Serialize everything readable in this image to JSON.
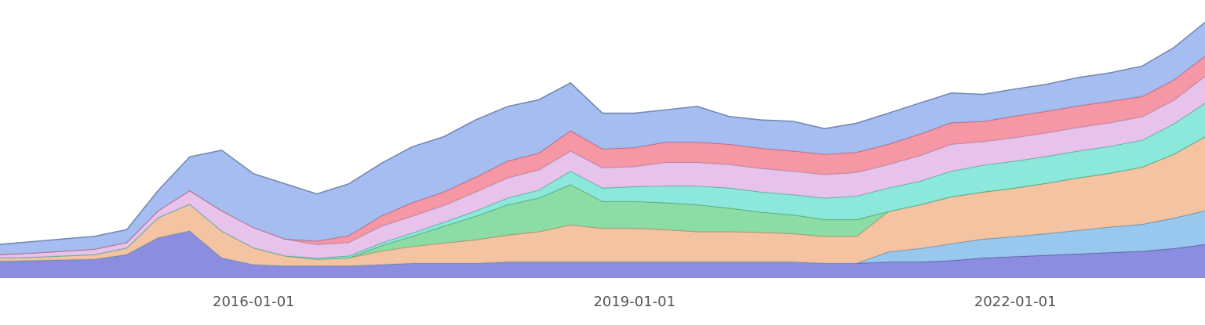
{
  "chart_data": {
    "type": "stacked-area",
    "x": [
      "2014-01-01",
      "2014-04-01",
      "2014-07-01",
      "2014-10-01",
      "2015-01-01",
      "2015-04-01",
      "2015-07-01",
      "2015-10-01",
      "2016-01-01",
      "2016-04-01",
      "2016-07-01",
      "2016-10-01",
      "2017-01-01",
      "2017-04-01",
      "2017-07-01",
      "2017-10-01",
      "2018-01-01",
      "2018-04-01",
      "2018-07-01",
      "2018-10-01",
      "2019-01-01",
      "2019-04-01",
      "2019-07-01",
      "2019-10-01",
      "2020-01-01",
      "2020-04-01",
      "2020-07-01",
      "2020-10-01",
      "2021-01-01",
      "2021-04-01",
      "2021-07-01",
      "2021-10-01",
      "2022-01-01",
      "2022-04-01",
      "2022-07-01",
      "2022-10-01",
      "2023-01-01",
      "2023-04-01",
      "2023-07-01"
    ],
    "xlim": [
      "2014-01-01",
      "2023-07-01"
    ],
    "xticks": [
      "2016-01-01",
      "2019-01-01",
      "2022-01-01"
    ],
    "ylim": [
      0,
      390
    ],
    "series": [
      {
        "color": "#8080dd",
        "values": [
          25,
          26,
          27,
          28,
          35,
          60,
          70,
          30,
          20,
          18,
          18,
          18,
          20,
          22,
          22,
          22,
          24,
          24,
          24,
          24,
          24,
          24,
          24,
          24,
          24,
          24,
          22,
          22,
          24,
          24,
          26,
          30,
          32,
          34,
          36,
          38,
          40,
          44,
          50
        ]
      },
      {
        "color": "#8ec2ec",
        "values": [
          0,
          0,
          0,
          0,
          0,
          0,
          0,
          0,
          0,
          0,
          0,
          0,
          0,
          0,
          0,
          0,
          0,
          0,
          0,
          0,
          0,
          0,
          0,
          0,
          0,
          0,
          0,
          0,
          15,
          20,
          25,
          28,
          30,
          32,
          35,
          38,
          40,
          45,
          50
        ]
      },
      {
        "color": "#f2bc98",
        "values": [
          5,
          5,
          6,
          7,
          10,
          30,
          40,
          40,
          25,
          15,
          10,
          12,
          20,
          25,
          30,
          35,
          40,
          45,
          55,
          50,
          50,
          48,
          45,
          45,
          44,
          42,
          40,
          40,
          60,
          65,
          70,
          70,
          72,
          75,
          78,
          80,
          85,
          95,
          110
        ]
      },
      {
        "color": "#7fd99b",
        "values": [
          0,
          0,
          0,
          0,
          0,
          0,
          0,
          0,
          0,
          0,
          0,
          0,
          8,
          15,
          25,
          35,
          45,
          50,
          60,
          40,
          40,
          40,
          40,
          35,
          30,
          28,
          25,
          25,
          0,
          0,
          0,
          0,
          0,
          0,
          0,
          0,
          0,
          0,
          0
        ]
      },
      {
        "color": "#80e6d6",
        "values": [
          0,
          0,
          0,
          0,
          0,
          0,
          0,
          0,
          0,
          0,
          2,
          3,
          4,
          5,
          6,
          8,
          10,
          12,
          20,
          20,
          22,
          25,
          28,
          30,
          30,
          30,
          32,
          35,
          35,
          35,
          38,
          40,
          40,
          40,
          40,
          40,
          40,
          45,
          50
        ]
      },
      {
        "color": "#e4bde9",
        "values": [
          5,
          6,
          7,
          8,
          8,
          10,
          20,
          30,
          30,
          25,
          20,
          20,
          25,
          25,
          25,
          28,
          30,
          30,
          30,
          30,
          30,
          35,
          35,
          35,
          35,
          35,
          35,
          35,
          35,
          38,
          40,
          35,
          35,
          35,
          35,
          35,
          35,
          35,
          40
        ]
      },
      {
        "color": "#f58c9c",
        "values": [
          0,
          0,
          0,
          0,
          0,
          0,
          0,
          0,
          0,
          0,
          5,
          10,
          15,
          20,
          20,
          22,
          25,
          25,
          30,
          28,
          28,
          30,
          30,
          30,
          30,
          30,
          30,
          30,
          30,
          32,
          32,
          30,
          32,
          32,
          32,
          32,
          30,
          30,
          30
        ]
      },
      {
        "color": "#9bb6ee",
        "values": [
          15,
          17,
          18,
          19,
          19,
          30,
          50,
          90,
          80,
          82,
          70,
          77,
          78,
          83,
          82,
          85,
          81,
          79,
          71,
          53,
          51,
          48,
          53,
          41,
          42,
          44,
          38,
          43,
          46,
          46,
          44,
          40,
          40,
          40,
          42,
          42,
          45,
          48,
          50
        ]
      }
    ]
  }
}
